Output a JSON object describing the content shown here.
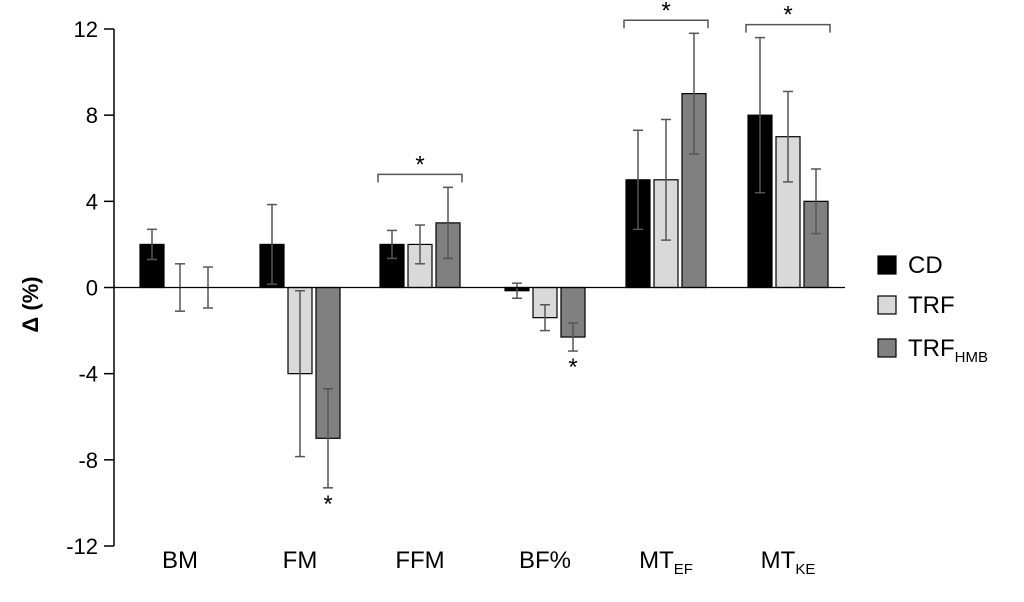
{
  "chart_data": {
    "type": "bar",
    "ylabel": "Δ (%)",
    "ylim": [
      -12,
      12
    ],
    "yticks": [
      12,
      8,
      4,
      0,
      -4,
      -8,
      -12
    ],
    "yticks_labels": [
      "12",
      "8",
      "4",
      "0",
      "-4",
      "-8",
      "-12"
    ],
    "categories": [
      {
        "main": "BM",
        "sub": ""
      },
      {
        "main": "FM",
        "sub": ""
      },
      {
        "main": "FFM",
        "sub": ""
      },
      {
        "main": "BF%",
        "sub": ""
      },
      {
        "main": "MT",
        "sub": "EF"
      },
      {
        "main": "MT",
        "sub": "KE"
      }
    ],
    "series": [
      {
        "name": "CD",
        "name_sub": "",
        "color": "#000000",
        "values": [
          2.0,
          2.0,
          2.0,
          -0.15,
          5.0,
          8.0
        ],
        "errors": [
          0.7,
          1.85,
          0.65,
          0.35,
          2.3,
          3.6
        ]
      },
      {
        "name": "TRF",
        "name_sub": "",
        "color": "#d9d9d9",
        "values": [
          0.0,
          -4.0,
          2.0,
          -1.4,
          5.0,
          7.0
        ],
        "errors": [
          1.1,
          3.85,
          0.9,
          0.6,
          2.8,
          2.1
        ]
      },
      {
        "name": "TRF",
        "name_sub": "HMB",
        "color": "#808080",
        "values": [
          0.0,
          -7.0,
          3.0,
          -2.3,
          9.0,
          4.0
        ],
        "errors": [
          0.95,
          2.3,
          1.65,
          0.65,
          2.8,
          1.5
        ]
      }
    ],
    "group_significance": [
      {
        "category_index": 2,
        "label": "*"
      },
      {
        "category_index": 4,
        "label": "*"
      },
      {
        "category_index": 5,
        "label": "*"
      }
    ],
    "bar_significance": [
      {
        "category_index": 1,
        "series_index": 2,
        "label": "*"
      },
      {
        "category_index": 3,
        "series_index": 2,
        "label": "*"
      }
    ],
    "legend_position": "right",
    "grid": false
  }
}
